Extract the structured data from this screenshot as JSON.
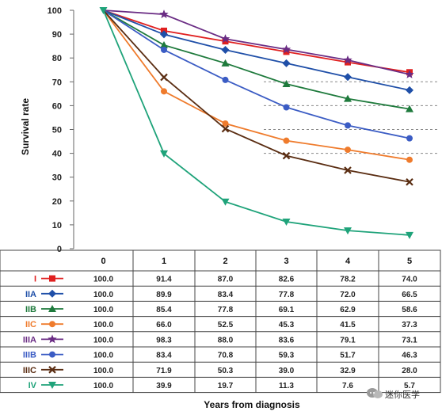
{
  "chart_data": {
    "type": "line",
    "xlabel": "Years from diagnosis",
    "ylabel": "Survival rate",
    "ylim": [
      0,
      100
    ],
    "yticks": [
      0,
      10,
      20,
      30,
      40,
      50,
      60,
      70,
      80,
      90,
      100
    ],
    "grid": "dashed horizontal lines at 40, 50, 60, 70 (right side)",
    "categories": [
      "0",
      "1",
      "2",
      "3",
      "4",
      "5"
    ],
    "x": [
      0,
      1,
      2,
      3,
      4,
      5
    ],
    "series": [
      {
        "name": "I",
        "color": "#e02020",
        "marker": "square",
        "values": [
          100.0,
          91.4,
          87.0,
          82.6,
          78.2,
          74.0
        ],
        "cells": [
          "100.0",
          "91.4",
          "87.0",
          "82.6",
          "78.2",
          "74.0"
        ]
      },
      {
        "name": "IIA",
        "color": "#1f4fa8",
        "marker": "diamond",
        "values": [
          100.0,
          89.9,
          83.4,
          77.8,
          72.0,
          66.5
        ],
        "cells": [
          "100.0",
          "89.9",
          "83.4",
          "77.8",
          "72.0",
          "66.5"
        ]
      },
      {
        "name": "IIB",
        "color": "#1e7a3c",
        "marker": "triangle-up",
        "values": [
          100.0,
          85.4,
          77.8,
          69.1,
          62.9,
          58.6
        ],
        "cells": [
          "100.0",
          "85.4",
          "77.8",
          "69.1",
          "62.9",
          "58.6"
        ]
      },
      {
        "name": "IIC",
        "color": "#ef7b2c",
        "marker": "circle",
        "values": [
          100.0,
          66.0,
          52.5,
          45.3,
          41.5,
          37.3
        ],
        "cells": [
          "100.0",
          "66.0",
          "52.5",
          "45.3",
          "41.5",
          "37.3"
        ]
      },
      {
        "name": "IIIA",
        "color": "#6a2c84",
        "marker": "star",
        "values": [
          100.0,
          98.3,
          88.0,
          83.6,
          79.1,
          73.1
        ],
        "cells": [
          "100.0",
          "98.3",
          "88.0",
          "83.6",
          "79.1",
          "73.1"
        ]
      },
      {
        "name": "IIIB",
        "color": "#3b5cc4",
        "marker": "circle",
        "values": [
          100.0,
          83.4,
          70.8,
          59.3,
          51.7,
          46.3
        ],
        "cells": [
          "100.0",
          "83.4",
          "70.8",
          "59.3",
          "51.7",
          "46.3"
        ]
      },
      {
        "name": "IIIC",
        "color": "#5a2d12",
        "marker": "x",
        "values": [
          100.0,
          71.9,
          50.3,
          39.0,
          32.9,
          28.0
        ],
        "cells": [
          "100.0",
          "71.9",
          "50.3",
          "39.0",
          "32.9",
          "28.0"
        ]
      },
      {
        "name": "IV",
        "color": "#1fa37a",
        "marker": "triangle-down",
        "values": [
          100.0,
          39.9,
          19.7,
          11.3,
          7.6,
          5.7
        ],
        "cells": [
          "100.0",
          "39.9",
          "19.7",
          "11.3",
          "7.6",
          "5.7"
        ]
      }
    ]
  },
  "watermark": {
    "text": "迷你医学",
    "icon": "chat-bubble-icon"
  }
}
